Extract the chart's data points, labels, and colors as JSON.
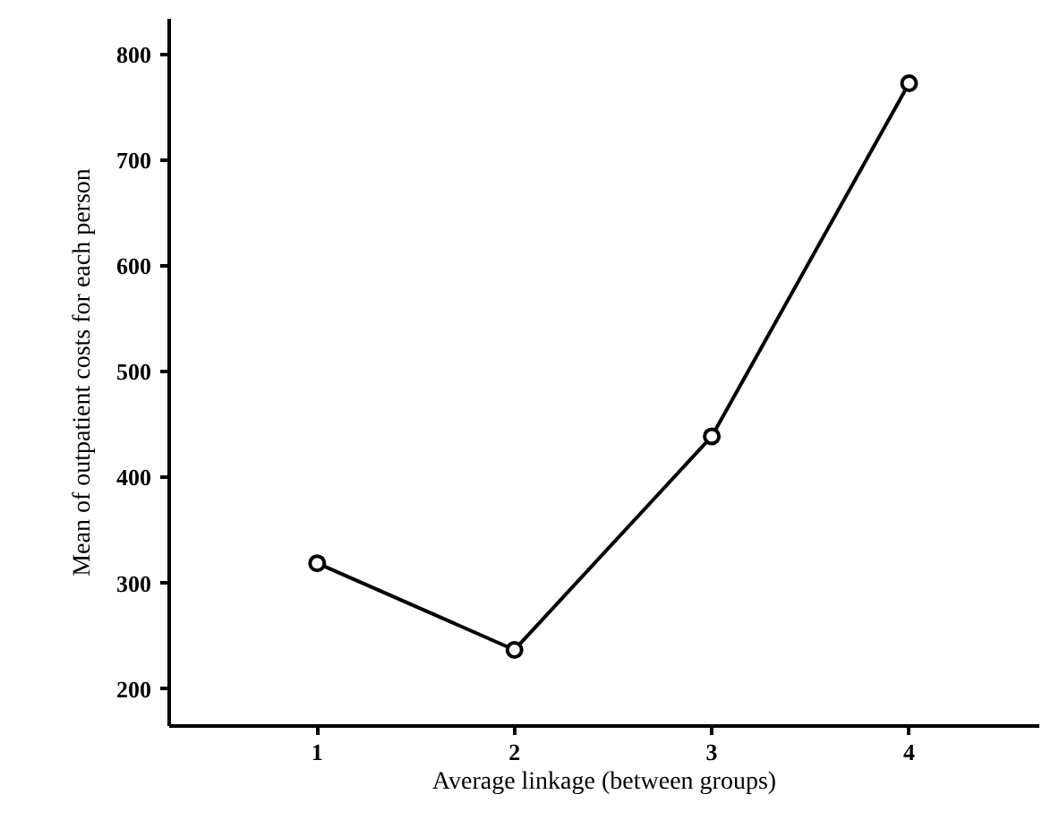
{
  "chart_data": {
    "type": "line",
    "xlabel": "Average linkage (between groups)",
    "ylabel": "Mean of outpatient costs for each person",
    "x": [
      1,
      2,
      3,
      4
    ],
    "series": [
      {
        "color": "#000000",
        "values": [
          319,
          237,
          439,
          773
        ]
      }
    ],
    "xlim": [
      0.25,
      4.66
    ],
    "xticks": [
      1,
      2,
      3,
      4
    ],
    "ylim": [
      165,
      834
    ],
    "yticks": [
      200,
      300,
      400,
      500,
      600,
      700,
      800
    ],
    "grid": false,
    "marker": "circle",
    "line_style": "solid"
  }
}
